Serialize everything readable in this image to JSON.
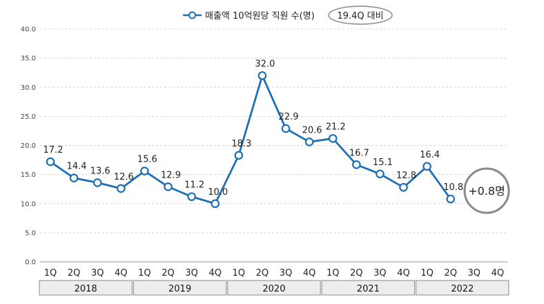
{
  "chart_data": {
    "type": "line",
    "title": "",
    "xlabel": "",
    "ylabel": "",
    "ylim": [
      0,
      40
    ],
    "yticks": [
      "0.0",
      "5.0",
      "10.0",
      "15.0",
      "20.0",
      "25.0",
      "30.0",
      "35.0",
      "40.0"
    ],
    "grid": true,
    "legend_position": "top-center",
    "categories": [
      "1Q",
      "2Q",
      "3Q",
      "4Q",
      "1Q",
      "2Q",
      "3Q",
      "4Q",
      "1Q",
      "2Q",
      "3Q",
      "4Q",
      "1Q",
      "2Q",
      "3Q",
      "4Q",
      "1Q",
      "2Q",
      "3Q",
      "4Q"
    ],
    "years": [
      {
        "label": "2018",
        "start": 0,
        "span": 4
      },
      {
        "label": "2019",
        "start": 4,
        "span": 4
      },
      {
        "label": "2020",
        "start": 8,
        "span": 4
      },
      {
        "label": "2021",
        "start": 12,
        "span": 4
      },
      {
        "label": "2022",
        "start": 16,
        "span": 4
      }
    ],
    "series": [
      {
        "name": "매출액 10억원당 직원 수(명)",
        "values": [
          17.2,
          14.4,
          13.6,
          12.6,
          15.6,
          12.9,
          11.2,
          10.0,
          18.3,
          32.0,
          22.9,
          20.6,
          21.2,
          16.7,
          15.1,
          12.8,
          16.4,
          10.8,
          null,
          null
        ],
        "labels": [
          "17.2",
          "14.4",
          "13.6",
          "12.6",
          "15.6",
          "12.9",
          "11.2",
          "10.0",
          "18.3",
          "32.0",
          "22.9",
          "20.6",
          "21.2",
          "16.7",
          "15.1",
          "12.8",
          "16.4",
          "10.8",
          "",
          ""
        ],
        "color": "#1f6fb5"
      }
    ],
    "badge": "19.4Q 대비",
    "callout": "+0.8명"
  }
}
